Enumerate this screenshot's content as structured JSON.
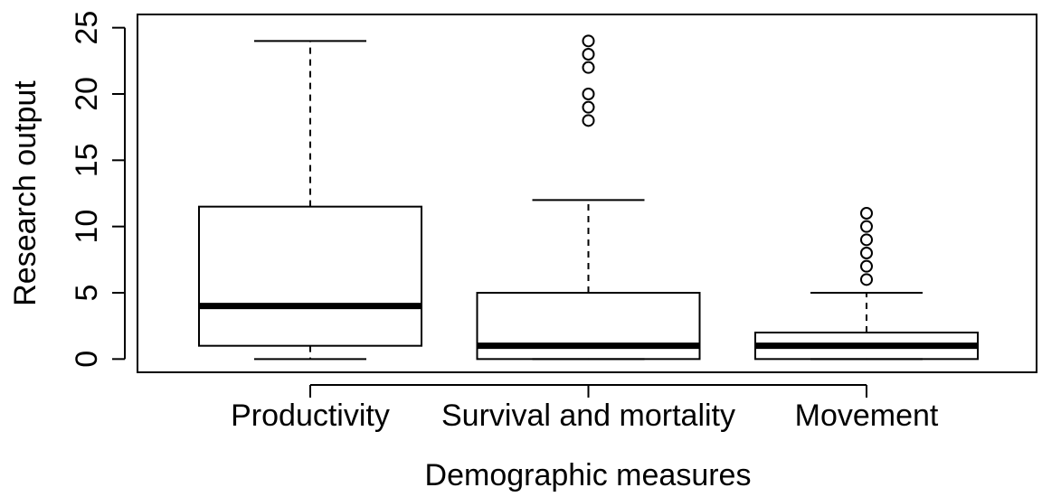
{
  "chart_data": {
    "type": "box",
    "x_label": "Demographic measures",
    "y_label": "Research output",
    "categories": [
      "Productivity",
      "Survival and mortality",
      "Movement"
    ],
    "boxes": [
      {
        "min": 0,
        "q1": 1,
        "median": 4,
        "q3": 11.5,
        "max": 24,
        "outliers": []
      },
      {
        "min": 0,
        "q1": 0,
        "median": 1,
        "q3": 5,
        "max": 12,
        "outliers": [
          18,
          19,
          20,
          22,
          23,
          24
        ]
      },
      {
        "min": 0,
        "q1": 0,
        "median": 1,
        "q3": 2,
        "max": 5,
        "outliers": [
          6,
          7,
          8,
          9,
          10,
          11
        ]
      }
    ],
    "ylim": [
      -1,
      26
    ],
    "yticks": [
      0,
      5,
      10,
      15,
      20,
      25
    ]
  }
}
